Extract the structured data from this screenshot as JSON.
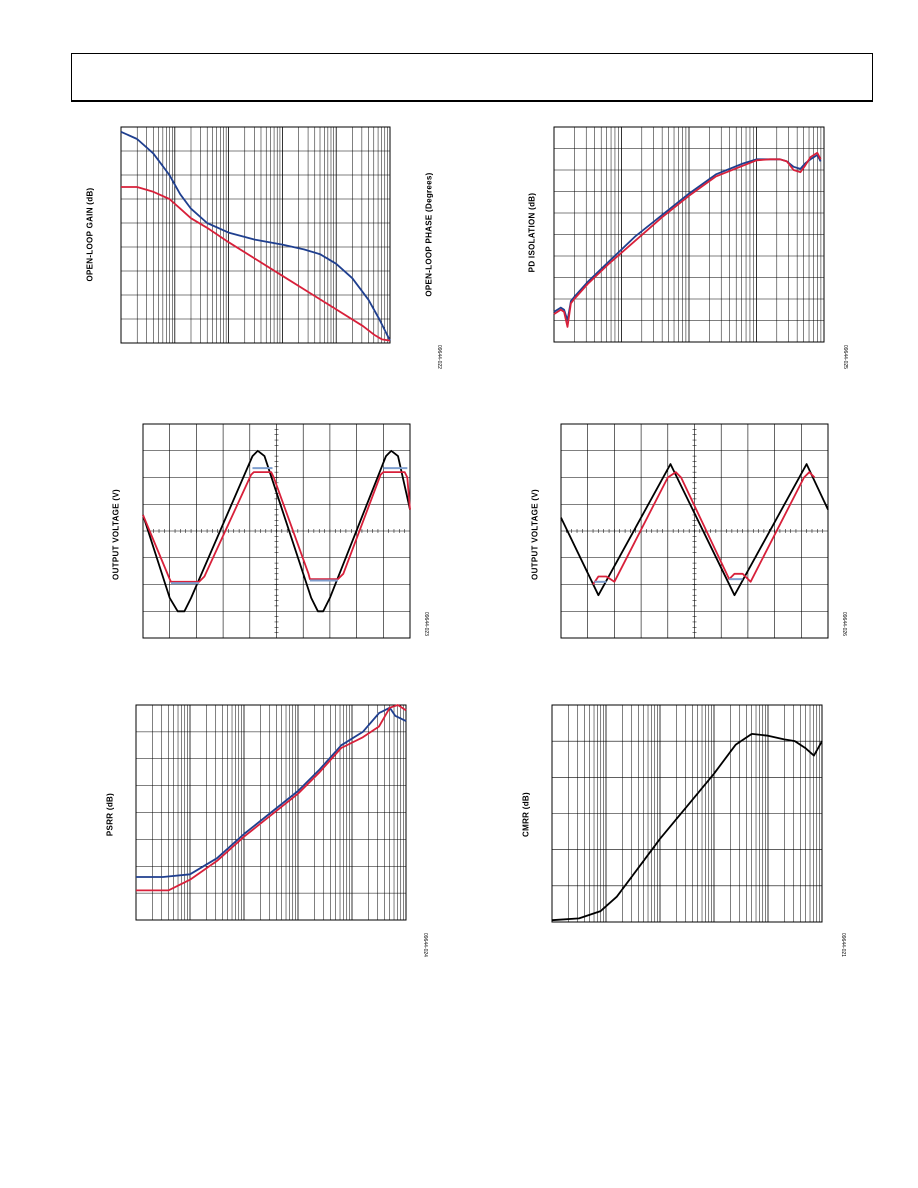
{
  "page": {
    "header": ""
  },
  "charts": [
    {
      "id": "c1",
      "ylabel": "OPEN-LOOP GAIN (dB)",
      "ylabel_right": "OPEN-LOOP PHASE (Degrees)",
      "fig_id": "09644-022",
      "grid": {
        "vdiv": 9,
        "x_decades": 5
      }
    },
    {
      "id": "c2",
      "ylabel": "PD ISOLATION (dB)",
      "fig_id": "09644-025",
      "grid": {
        "vdiv": 10,
        "x_decades": 4
      }
    },
    {
      "id": "c3",
      "ylabel": "OUTPUT VOLTAGE (V)",
      "fig_id": "09644-023",
      "grid": {
        "vdiv": 8,
        "hdiv": 10
      }
    },
    {
      "id": "c4",
      "ylabel": "OUTPUT VOLTAGE (V)",
      "fig_id": "09644-026",
      "grid": {
        "vdiv": 8,
        "hdiv": 10
      }
    },
    {
      "id": "c5",
      "ylabel": "PSRR (dB)",
      "fig_id": "09644-024",
      "grid": {
        "vdiv": 8,
        "x_decades": 5
      }
    },
    {
      "id": "c6",
      "ylabel": "CMRR (dB)",
      "fig_id": "09644-021",
      "grid": {
        "vdiv": 6,
        "x_decades": 5
      }
    }
  ],
  "chart_data": [
    {
      "type": "line",
      "xscale": "log",
      "xlim": [
        0,
        5
      ],
      "ylim": [
        0,
        9
      ],
      "series": [
        {
          "color": "#1f3f8f",
          "x": [
            0,
            0.3,
            0.6,
            0.9,
            1.1,
            1.3,
            1.6,
            2.0,
            2.5,
            3.0,
            3.4,
            3.7,
            4.0,
            4.3,
            4.6,
            4.8,
            5.0
          ],
          "y": [
            8.8,
            8.5,
            7.9,
            7.0,
            6.2,
            5.6,
            5.0,
            4.6,
            4.3,
            4.1,
            3.9,
            3.7,
            3.3,
            2.7,
            1.8,
            1.0,
            0.1
          ]
        },
        {
          "color": "#d8203a",
          "x": [
            0,
            0.3,
            0.6,
            0.9,
            1.1,
            1.3,
            1.6,
            2.0,
            2.5,
            3.0,
            3.5,
            4.0,
            4.5,
            4.7,
            4.85,
            5.0
          ],
          "y": [
            6.5,
            6.5,
            6.3,
            6.0,
            5.6,
            5.2,
            4.8,
            4.2,
            3.5,
            2.8,
            2.1,
            1.4,
            0.7,
            0.35,
            0.15,
            0.1
          ]
        }
      ]
    },
    {
      "type": "line",
      "xscale": "log",
      "xlim": [
        0,
        4
      ],
      "ylim": [
        0,
        10
      ],
      "series": [
        {
          "color": "#1f3f8f",
          "x": [
            0,
            0.1,
            0.15,
            0.2,
            0.25,
            0.3,
            0.5,
            0.8,
            1.2,
            1.6,
            2.0,
            2.4,
            2.8,
            3.0,
            3.2,
            3.35,
            3.45,
            3.55,
            3.65,
            3.72,
            3.8,
            3.9,
            3.95
          ],
          "y": [
            1.4,
            1.6,
            1.5,
            1.0,
            1.9,
            2.1,
            2.8,
            3.7,
            4.9,
            5.9,
            6.9,
            7.8,
            8.3,
            8.5,
            8.5,
            8.5,
            8.4,
            8.15,
            8.05,
            8.3,
            8.5,
            8.7,
            8.4
          ]
        },
        {
          "color": "#d8203a",
          "x": [
            0,
            0.1,
            0.15,
            0.2,
            0.25,
            0.3,
            0.5,
            0.8,
            1.2,
            1.6,
            2.0,
            2.4,
            2.8,
            3.0,
            3.2,
            3.35,
            3.45,
            3.55,
            3.65,
            3.72,
            3.8,
            3.9,
            3.95
          ],
          "y": [
            1.3,
            1.5,
            1.4,
            0.7,
            1.8,
            2.0,
            2.7,
            3.6,
            4.7,
            5.8,
            6.8,
            7.7,
            8.2,
            8.45,
            8.5,
            8.5,
            8.4,
            8.0,
            7.9,
            8.2,
            8.6,
            8.8,
            8.5
          ]
        }
      ]
    },
    {
      "type": "line",
      "xlim": [
        0,
        10
      ],
      "ylim": [
        0,
        8
      ],
      "series": [
        {
          "color": "#000000",
          "x": [
            0,
            1.0,
            1.3,
            1.55,
            1.8,
            4.1,
            4.3,
            4.55,
            6.3,
            6.55,
            6.75,
            7.0,
            9.1,
            9.3,
            9.55,
            10.0
          ],
          "y": [
            4.6,
            1.5,
            1.0,
            1.0,
            1.5,
            6.8,
            7.0,
            6.8,
            1.5,
            1.0,
            1.0,
            1.5,
            6.8,
            7.0,
            6.8,
            4.8
          ]
        },
        {
          "color": "#d8203a",
          "x": [
            0,
            1.0,
            1.05,
            2.1,
            2.3,
            4.05,
            4.15,
            4.8,
            4.9,
            6.2,
            6.25,
            7.3,
            7.5,
            8.9,
            9.0,
            9.8,
            9.9,
            10.0
          ],
          "y": [
            4.6,
            2.2,
            2.1,
            2.1,
            2.3,
            6.1,
            6.2,
            6.2,
            6.0,
            2.4,
            2.2,
            2.2,
            2.4,
            6.1,
            6.2,
            6.2,
            6.0,
            4.8
          ]
        },
        {
          "color": "#7f9fcf",
          "x": [
            1.05,
            2.1,
            6.25,
            7.3,
            4.1,
            4.85,
            9.0,
            9.9
          ],
          "y": [
            2.05,
            2.05,
            2.15,
            2.15,
            6.35,
            6.35,
            6.35,
            6.35
          ],
          "segments": true
        }
      ]
    },
    {
      "type": "line",
      "xlim": [
        0,
        10
      ],
      "ylim": [
        0,
        8
      ],
      "series": [
        {
          "color": "#000000",
          "x": [
            0,
            1.4,
            4.1,
            6.5,
            9.2,
            10.0
          ],
          "y": [
            4.5,
            1.6,
            6.5,
            1.6,
            6.5,
            4.8
          ]
        },
        {
          "color": "#d8203a",
          "x": [
            1.2,
            1.4,
            1.7,
            2.0,
            4.0,
            4.3,
            4.5,
            6.3,
            6.5,
            6.8,
            7.1,
            9.1,
            9.3,
            9.5
          ],
          "y": [
            2.0,
            2.3,
            2.3,
            2.1,
            6.0,
            6.2,
            6.0,
            2.2,
            2.4,
            2.4,
            2.1,
            6.0,
            6.2,
            6.0
          ]
        },
        {
          "color": "#7f9fcf",
          "x": [
            1.25,
            1.7,
            6.3,
            6.8
          ],
          "y": [
            2.1,
            2.1,
            2.2,
            2.2
          ],
          "segments": true
        }
      ]
    },
    {
      "type": "line",
      "xscale": "log",
      "xlim": [
        0,
        5
      ],
      "ylim": [
        0,
        8
      ],
      "series": [
        {
          "color": "#1f3f8f",
          "x": [
            0,
            0.5,
            1.0,
            1.5,
            2.0,
            2.5,
            3.0,
            3.4,
            3.8,
            4.2,
            4.5,
            4.7,
            4.8,
            5.0
          ],
          "y": [
            1.6,
            1.6,
            1.7,
            2.3,
            3.2,
            4.0,
            4.8,
            5.6,
            6.5,
            7.0,
            7.7,
            7.9,
            7.6,
            7.4
          ]
        },
        {
          "color": "#d8203a",
          "x": [
            0,
            0.6,
            1.0,
            1.5,
            2.0,
            2.5,
            3.0,
            3.4,
            3.8,
            4.2,
            4.5,
            4.7,
            4.85,
            5.0
          ],
          "y": [
            1.1,
            1.1,
            1.5,
            2.2,
            3.1,
            3.9,
            4.7,
            5.5,
            6.4,
            6.8,
            7.2,
            7.9,
            8.0,
            7.8
          ]
        }
      ]
    },
    {
      "type": "line",
      "xscale": "log",
      "xlim": [
        0,
        5
      ],
      "ylim": [
        0,
        6
      ],
      "series": [
        {
          "color": "#000000",
          "x": [
            0,
            0.5,
            0.9,
            1.2,
            1.6,
            2.0,
            2.5,
            3.0,
            3.4,
            3.7,
            4.0,
            4.3,
            4.5,
            4.7,
            4.85,
            5.0
          ],
          "y": [
            0.05,
            0.1,
            0.3,
            0.7,
            1.5,
            2.3,
            3.2,
            4.1,
            4.9,
            5.2,
            5.15,
            5.05,
            5.0,
            4.8,
            4.6,
            5.0
          ]
        }
      ]
    }
  ]
}
